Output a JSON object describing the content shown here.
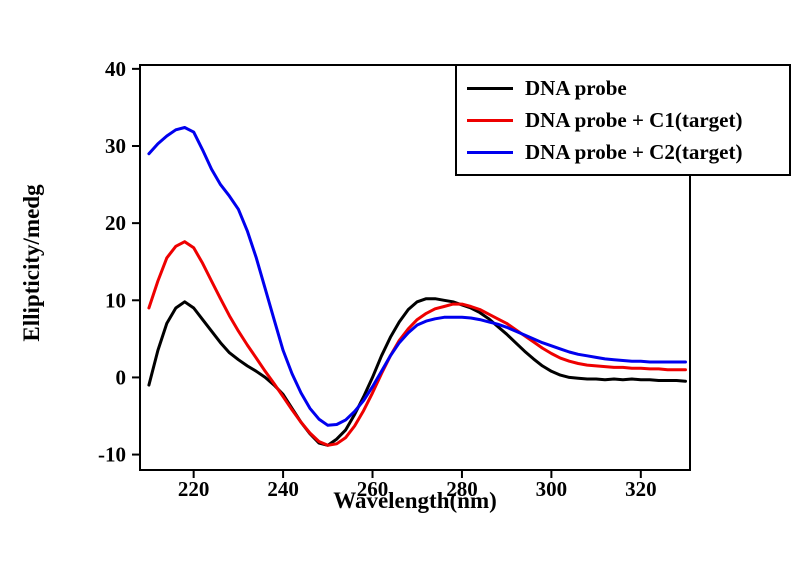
{
  "chart_data": {
    "type": "line",
    "title": "",
    "xlabel": "Wavelength(nm)",
    "ylabel": "Ellipticity/medg",
    "xlim": [
      208,
      331
    ],
    "ylim": [
      -12,
      40.5
    ],
    "x_ticks": [
      220,
      240,
      260,
      280,
      300,
      320
    ],
    "y_ticks": [
      -10,
      0,
      10,
      20,
      30,
      40
    ],
    "grid": false,
    "legend_position": "top-right",
    "x_start": 210,
    "x_step": 2,
    "series": [
      {
        "name": "DNA probe",
        "color": "#000000",
        "y": [
          -1,
          3.5,
          7,
          9,
          9.8,
          9,
          7.5,
          6,
          4.5,
          3.2,
          2.3,
          1.5,
          0.8,
          0,
          -1,
          -2.2,
          -4,
          -5.8,
          -7.3,
          -8.5,
          -8.8,
          -8,
          -6.8,
          -4.8,
          -2.5,
          0,
          2.8,
          5.2,
          7.2,
          8.8,
          9.8,
          10.2,
          10.2,
          10,
          9.8,
          9.4,
          9,
          8.4,
          7.6,
          6.6,
          5.6,
          4.5,
          3.4,
          2.4,
          1.5,
          0.8,
          0.3,
          0,
          -0.1,
          -0.2,
          -0.2,
          -0.3,
          -0.2,
          -0.3,
          -0.2,
          -0.3,
          -0.3,
          -0.4,
          -0.4,
          -0.4,
          -0.5
        ]
      },
      {
        "name": "DNA probe + C1(target)",
        "color": "#ee0000",
        "y": [
          9,
          12.5,
          15.5,
          17,
          17.6,
          16.8,
          14.8,
          12.5,
          10.2,
          8,
          6,
          4.2,
          2.5,
          0.8,
          -0.8,
          -2.5,
          -4.2,
          -5.8,
          -7.2,
          -8.3,
          -8.8,
          -8.6,
          -7.8,
          -6.3,
          -4.3,
          -2,
          0.5,
          2.8,
          4.8,
          6.3,
          7.5,
          8.3,
          8.9,
          9.2,
          9.5,
          9.5,
          9.2,
          8.8,
          8.2,
          7.6,
          7,
          6.2,
          5.4,
          4.6,
          3.8,
          3.1,
          2.5,
          2.1,
          1.8,
          1.6,
          1.5,
          1.4,
          1.3,
          1.3,
          1.2,
          1.2,
          1.1,
          1.1,
          1,
          1,
          1
        ]
      },
      {
        "name": "DNA probe + C2(target)",
        "color": "#0000ee",
        "y": [
          29,
          30.3,
          31.3,
          32.1,
          32.4,
          31.8,
          29.5,
          27,
          25,
          23.5,
          21.8,
          19,
          15.5,
          11.5,
          7.5,
          3.5,
          0.5,
          -2,
          -4,
          -5.4,
          -6.2,
          -6.1,
          -5.5,
          -4.4,
          -3,
          -1.2,
          0.8,
          2.8,
          4.5,
          5.8,
          6.8,
          7.3,
          7.6,
          7.8,
          7.8,
          7.8,
          7.7,
          7.5,
          7.2,
          6.9,
          6.5,
          6,
          5.5,
          5,
          4.5,
          4.1,
          3.7,
          3.3,
          3,
          2.8,
          2.6,
          2.4,
          2.3,
          2.2,
          2.1,
          2.1,
          2,
          2,
          2,
          2,
          2
        ]
      }
    ]
  }
}
